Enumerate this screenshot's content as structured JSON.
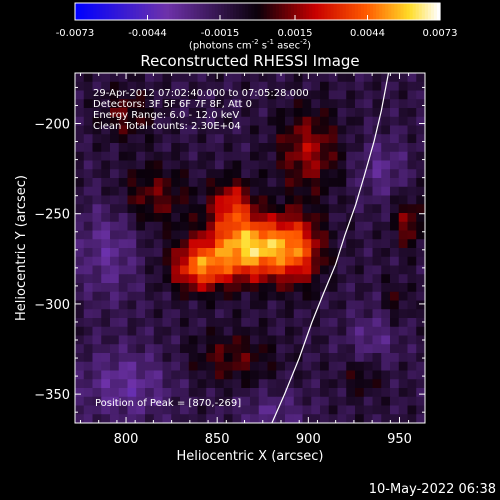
{
  "chart_data": {
    "type": "heatmap",
    "title": "Reconstructed RHESSI Image",
    "xlabel": "Heliocentric X (arcsec)",
    "ylabel": "Heliocentric Y (arcsec)",
    "xlim": [
      772,
      964
    ],
    "ylim": [
      -366,
      -172
    ],
    "x_ticks": [
      800,
      850,
      900,
      950
    ],
    "y_ticks": [
      -200,
      -250,
      -300,
      -350
    ],
    "colorbar": {
      "ticks": [
        "-0.0073",
        "-0.0044",
        "-0.0015",
        "0.0015",
        "0.0044",
        "0.0073"
      ],
      "range": [
        -0.0073,
        0.0073
      ],
      "units_prefix": "(photons cm",
      "units_sup1": "-2",
      "units_mid": " s",
      "units_sup2": "-1",
      "units_mid2": " asec",
      "units_sup3": "-2",
      "units_suffix": ")"
    },
    "annotations": [
      "29-Apr-2012 07:02:40.000 to 07:05:28.000",
      "Detectors: 3F 5F 6F 7F 8F, Att 0",
      "Energy Range: 6.0 - 12.0 keV",
      "Clean     Total counts: 2.30E+04"
    ],
    "peak_label": "Position of Peak = [870,-269]",
    "peak": [
      870,
      -269
    ],
    "limb_curve": [
      [
        880,
        -366
      ],
      [
        887,
        -350
      ],
      [
        895,
        -330
      ],
      [
        902,
        -310
      ],
      [
        908,
        -295
      ],
      [
        915,
        -278
      ],
      [
        920,
        -262
      ],
      [
        926,
        -245
      ],
      [
        931,
        -228
      ],
      [
        936,
        -210
      ],
      [
        940,
        -193
      ],
      [
        944,
        -172
      ]
    ],
    "sources": [
      {
        "x": 870,
        "y": -269,
        "amp": 0.0073,
        "sx": 18,
        "sy": 12
      },
      {
        "x": 840,
        "y": -280,
        "amp": 0.0048,
        "sx": 11,
        "sy": 9
      },
      {
        "x": 858,
        "y": -245,
        "amp": 0.0038,
        "sx": 8,
        "sy": 10
      },
      {
        "x": 895,
        "y": -270,
        "amp": 0.003,
        "sx": 9,
        "sy": 14
      },
      {
        "x": 815,
        "y": -240,
        "amp": 0.0022,
        "sx": 14,
        "sy": 12
      },
      {
        "x": 900,
        "y": -215,
        "amp": 0.003,
        "sx": 12,
        "sy": 16
      },
      {
        "x": 800,
        "y": -195,
        "amp": 0.002,
        "sx": 10,
        "sy": 10
      },
      {
        "x": 955,
        "y": -255,
        "amp": 0.0025,
        "sx": 6,
        "sy": 10
      },
      {
        "x": 858,
        "y": -330,
        "amp": 0.002,
        "sx": 16,
        "sy": 10
      },
      {
        "x": 930,
        "y": -340,
        "amp": 0.0016,
        "sx": 8,
        "sy": 8
      },
      {
        "x": 948,
        "y": -298,
        "amp": 0.0014,
        "sx": 5,
        "sy": 8
      },
      {
        "x": 790,
        "y": -270,
        "amp": -0.0018,
        "sx": 12,
        "sy": 20
      },
      {
        "x": 800,
        "y": -345,
        "amp": -0.002,
        "sx": 18,
        "sy": 14
      },
      {
        "x": 940,
        "y": -225,
        "amp": -0.0016,
        "sx": 10,
        "sy": 12
      },
      {
        "x": 935,
        "y": -320,
        "amp": -0.0015,
        "sx": 10,
        "sy": 12
      },
      {
        "x": 880,
        "y": -360,
        "amp": -0.0014,
        "sx": 14,
        "sy": 8
      }
    ]
  },
  "footer": {
    "date": "10-May-2022 06:38"
  }
}
